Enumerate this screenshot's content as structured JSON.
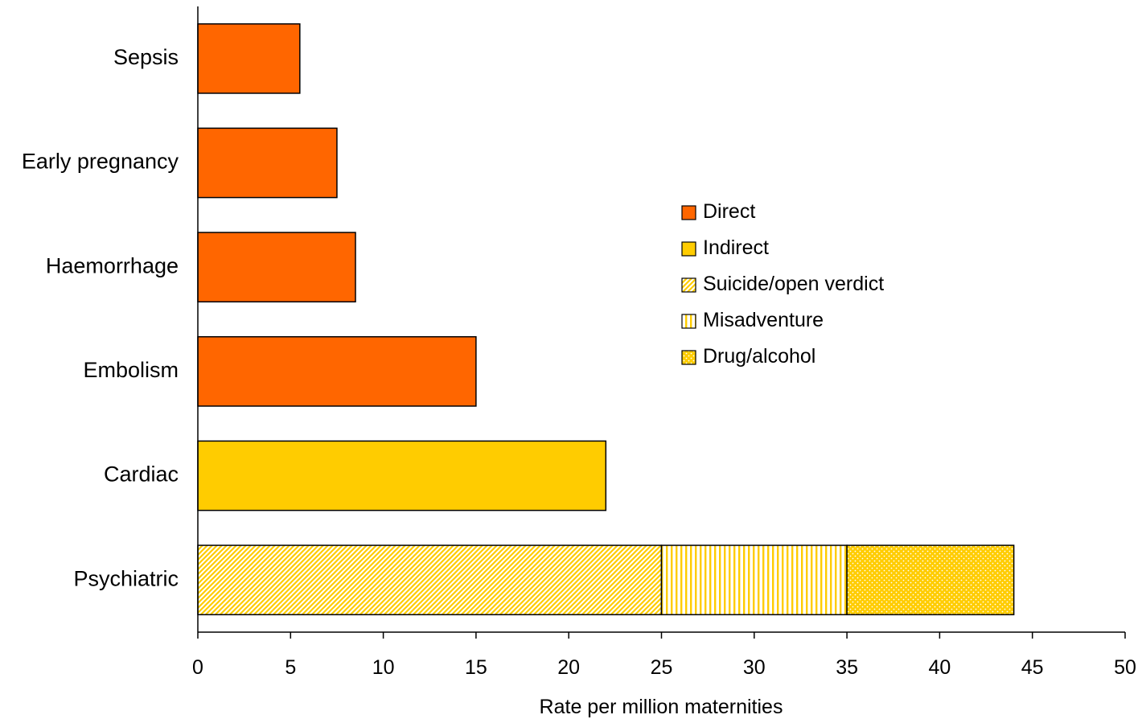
{
  "chart_data": {
    "type": "bar",
    "orientation": "horizontal",
    "stacked": true,
    "categories": [
      "Sepsis",
      "Early pregnancy",
      "Haemorrhage",
      "Embolism",
      "Cardiac",
      "Psychiatric"
    ],
    "series": [
      {
        "name": "Direct",
        "color": "#FF6600",
        "pattern": "solid",
        "values": [
          5.5,
          7.5,
          8.5,
          15,
          0,
          0
        ]
      },
      {
        "name": "Indirect",
        "color": "#FFCC00",
        "pattern": "solid",
        "values": [
          0,
          0,
          0,
          0,
          22,
          0
        ]
      },
      {
        "name": "Suicide/open verdict",
        "color": "#FFCC00",
        "pattern": "diagonal-stripes",
        "values": [
          0,
          0,
          0,
          0,
          0,
          25
        ]
      },
      {
        "name": "Misadventure",
        "color": "#FFCC00",
        "pattern": "vertical-stripes",
        "values": [
          0,
          0,
          0,
          0,
          0,
          10
        ]
      },
      {
        "name": "Drug/alcohol",
        "color": "#FFCC00",
        "pattern": "dots",
        "values": [
          0,
          0,
          0,
          0,
          0,
          9
        ]
      }
    ],
    "xlabel": "Rate per million maternities",
    "ylabel": "",
    "xlim": [
      0,
      50
    ],
    "xticks": [
      0,
      5,
      10,
      15,
      20,
      25,
      30,
      35,
      40,
      45,
      50
    ],
    "grid": false,
    "legend_position": "right"
  }
}
